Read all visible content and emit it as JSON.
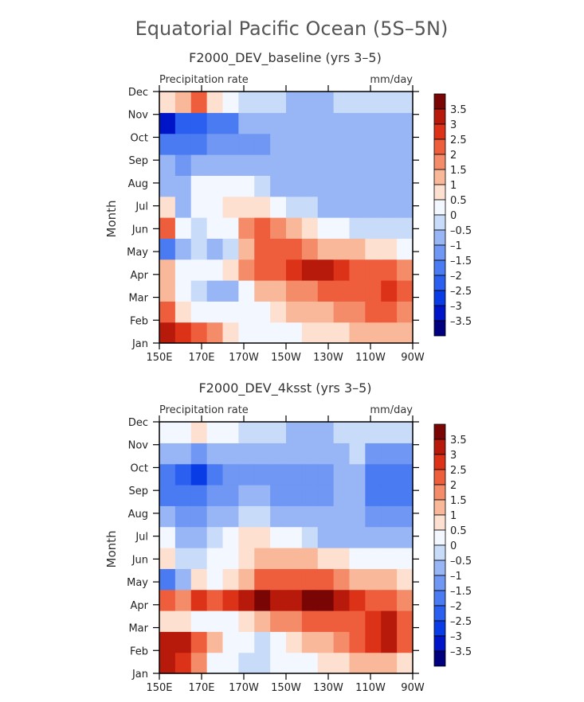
{
  "figure": {
    "title": "Equatorial Pacific Ocean (5S–5N)"
  },
  "colorbar": {
    "levels": [
      -3.5,
      -3,
      -2.5,
      -2,
      -1.5,
      -1,
      -0.5,
      0,
      0.5,
      1,
      1.5,
      2,
      2.5,
      3,
      3.5
    ],
    "labels": [
      "3.5",
      "3",
      "2.5",
      "2",
      "1.5",
      "1",
      "0.5",
      "0",
      "–0.5",
      "–1",
      "–1.5",
      "–2",
      "–2.5",
      "–3",
      "–3.5"
    ],
    "colors": [
      "#00007f",
      "#0014c8",
      "#0a3ce6",
      "#2a5ff0",
      "#4a7bf2",
      "#6f97f3",
      "#98b6f6",
      "#c8dbf9",
      "#f3f7ff",
      "#fde0cf",
      "#f9b89a",
      "#f58c69",
      "#ee5d3c",
      "#dc3318",
      "#b71a0a",
      "#7a0505"
    ]
  },
  "chart_data": [
    {
      "type": "heatmap",
      "title": "F2000_DEV_baseline (yrs 3–5)",
      "variable_label": "Precipitation rate",
      "units_label": "mm/day",
      "ylabel": "Month",
      "x_ticks": [
        "150E",
        "170E",
        "170W",
        "150W",
        "130W",
        "110W",
        "90W"
      ],
      "y_ticks": [
        "Jan",
        "Feb",
        "Mar",
        "Apr",
        "May",
        "Jun",
        "Jul",
        "Aug",
        "Sep",
        "Oct",
        "Nov",
        "Dec"
      ],
      "x_longitudes": [
        150,
        170,
        190,
        210,
        230,
        250,
        270
      ],
      "values": [
        [
          3.2,
          2.6,
          2.2,
          1.6,
          0.6,
          0.4,
          0.4,
          0.2,
          0.3,
          0.5,
          0.6,
          0.8,
          1.0,
          1.2,
          1.4,
          1.3
        ],
        [
          2.2,
          0.8,
          0.4,
          0.2,
          0.2,
          0.3,
          0.4,
          0.8,
          1.0,
          1.2,
          1.3,
          1.6,
          1.8,
          2.0,
          2.0,
          1.6
        ],
        [
          1.4,
          0.0,
          -0.4,
          -0.6,
          -0.6,
          0.4,
          1.0,
          1.4,
          1.6,
          1.8,
          2.0,
          2.2,
          2.4,
          2.4,
          2.6,
          2.0
        ],
        [
          1.2,
          0.2,
          0.2,
          0.2,
          0.6,
          1.6,
          2.0,
          2.2,
          2.6,
          3.2,
          3.2,
          2.6,
          2.4,
          2.4,
          2.0,
          1.6
        ],
        [
          -1.6,
          -0.6,
          -0.4,
          -0.8,
          -0.4,
          1.2,
          2.0,
          2.2,
          2.0,
          1.6,
          1.4,
          1.2,
          1.0,
          0.8,
          0.8,
          0.4
        ],
        [
          2.2,
          0.2,
          -0.2,
          0.0,
          0.4,
          1.6,
          2.2,
          1.8,
          1.0,
          0.6,
          0.3,
          0.0,
          -0.2,
          -0.3,
          -0.4,
          -0.4
        ],
        [
          0.8,
          -0.8,
          0.0,
          0.2,
          0.6,
          0.8,
          0.6,
          0.2,
          -0.2,
          -0.4,
          -0.6,
          -0.8,
          -0.8,
          -0.8,
          -0.8,
          -0.8
        ],
        [
          -0.6,
          -1.0,
          0.0,
          0.2,
          0.4,
          0.2,
          -0.2,
          -0.6,
          -0.8,
          -1.0,
          -1.0,
          -1.0,
          -1.0,
          -1.0,
          -1.0,
          -1.0
        ],
        [
          -0.8,
          -1.2,
          -1.0,
          -0.8,
          -0.6,
          -0.8,
          -1.0,
          -1.0,
          -1.0,
          -1.0,
          -1.0,
          -1.0,
          -1.0,
          -1.0,
          -1.0,
          -1.0
        ],
        [
          -1.6,
          -2.0,
          -1.6,
          -1.4,
          -1.2,
          -1.2,
          -1.2,
          -1.0,
          -1.0,
          -1.0,
          -1.0,
          -1.0,
          -1.0,
          -1.0,
          -1.0,
          -1.0
        ],
        [
          -3.2,
          -2.4,
          -2.2,
          -1.8,
          -1.6,
          -1.0,
          -0.8,
          -0.6,
          -0.6,
          -0.8,
          -0.8,
          -0.8,
          -0.8,
          -0.8,
          -0.6,
          -0.6
        ],
        [
          0.6,
          1.2,
          2.0,
          0.6,
          0.2,
          -0.2,
          -0.2,
          -0.4,
          -0.6,
          -0.6,
          -0.6,
          -0.4,
          -0.4,
          -0.4,
          -0.4,
          -0.4
        ]
      ]
    },
    {
      "type": "heatmap",
      "title": "F2000_DEV_4ksst (yrs 3–5)",
      "variable_label": "Precipitation rate",
      "units_label": "mm/day",
      "ylabel": "Month",
      "x_ticks": [
        "150E",
        "170E",
        "170W",
        "150W",
        "130W",
        "110W",
        "90W"
      ],
      "y_ticks": [
        "Jan",
        "Feb",
        "Mar",
        "Apr",
        "May",
        "Jun",
        "Jul",
        "Aug",
        "Sep",
        "Oct",
        "Nov",
        "Dec"
      ],
      "x_longitudes": [
        150,
        170,
        190,
        210,
        230,
        250,
        270
      ],
      "values": [
        [
          3.0,
          2.8,
          1.6,
          0.4,
          0.0,
          -0.2,
          -0.2,
          0.0,
          0.2,
          0.4,
          0.6,
          0.8,
          1.0,
          1.0,
          1.0,
          0.8
        ],
        [
          3.2,
          3.0,
          2.2,
          1.0,
          0.4,
          0.0,
          -0.2,
          0.4,
          0.8,
          1.0,
          1.4,
          1.8,
          2.2,
          2.6,
          3.0,
          2.0
        ],
        [
          0.8,
          0.6,
          0.4,
          0.2,
          0.4,
          0.6,
          1.2,
          1.6,
          1.8,
          2.0,
          2.0,
          2.2,
          2.2,
          2.6,
          3.0,
          2.2
        ],
        [
          2.4,
          1.8,
          2.6,
          2.0,
          2.6,
          3.0,
          3.6,
          3.0,
          3.4,
          3.6,
          3.6,
          3.2,
          2.8,
          2.4,
          2.0,
          1.6
        ],
        [
          -1.8,
          -0.6,
          0.6,
          0.4,
          0.8,
          1.2,
          2.0,
          2.2,
          2.2,
          2.2,
          2.0,
          1.8,
          1.4,
          1.2,
          1.0,
          0.8
        ],
        [
          0.8,
          -0.4,
          -0.2,
          0.0,
          0.2,
          0.8,
          1.4,
          1.4,
          1.2,
          1.0,
          0.8,
          0.6,
          0.4,
          0.2,
          0.0,
          0.0
        ],
        [
          0.2,
          -0.6,
          -0.8,
          -0.4,
          0.0,
          0.6,
          0.8,
          0.4,
          0.0,
          -0.4,
          -0.6,
          -0.8,
          -0.8,
          -1.0,
          -1.0,
          -1.0
        ],
        [
          -1.0,
          -1.4,
          -1.2,
          -0.8,
          -0.6,
          -0.2,
          -0.4,
          -0.8,
          -1.0,
          -1.0,
          -1.0,
          -0.8,
          -0.6,
          -1.2,
          -1.4,
          -1.4
        ],
        [
          -1.6,
          -1.8,
          -1.6,
          -1.4,
          -1.2,
          -1.0,
          -1.0,
          -1.2,
          -1.2,
          -1.2,
          -1.2,
          -1.0,
          -0.6,
          -1.6,
          -1.6,
          -1.6
        ],
        [
          -2.0,
          -2.2,
          -2.8,
          -1.8,
          -1.4,
          -1.2,
          -1.2,
          -1.2,
          -1.2,
          -1.4,
          -1.2,
          -1.0,
          -0.6,
          -1.6,
          -1.6,
          -1.6
        ],
        [
          -0.6,
          -1.0,
          -1.2,
          -0.8,
          -0.6,
          -0.6,
          -0.8,
          -1.0,
          -1.0,
          -1.0,
          -1.0,
          -0.8,
          -0.4,
          -1.4,
          -1.4,
          -1.4
        ],
        [
          0.2,
          0.4,
          0.6,
          0.2,
          0.0,
          -0.2,
          -0.4,
          -0.4,
          -0.6,
          -0.6,
          -0.6,
          -0.4,
          -0.4,
          -0.4,
          -0.4,
          -0.4
        ]
      ]
    }
  ]
}
